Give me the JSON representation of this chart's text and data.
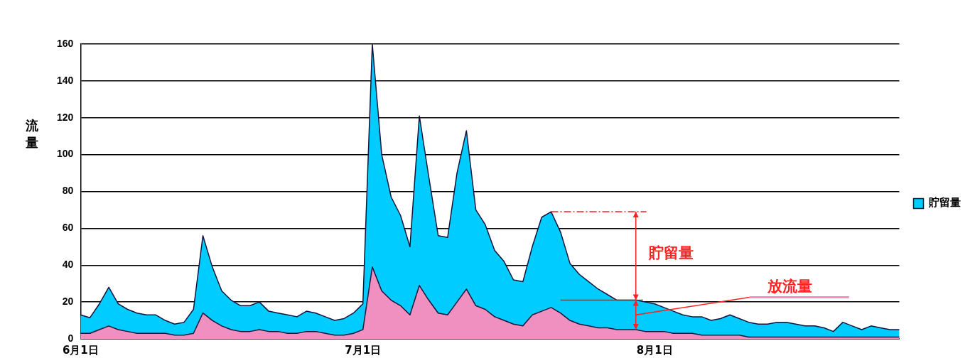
{
  "chart_data": {
    "type": "area",
    "ylabel": "流量",
    "categories": [
      "6月1日",
      null,
      null,
      null,
      null,
      null,
      null,
      null,
      null,
      null,
      null,
      null,
      null,
      null,
      null,
      null,
      null,
      null,
      null,
      null,
      null,
      null,
      null,
      null,
      null,
      null,
      null,
      null,
      null,
      null,
      "7月1日",
      null,
      null,
      null,
      null,
      null,
      null,
      null,
      null,
      null,
      null,
      null,
      null,
      null,
      null,
      null,
      null,
      null,
      null,
      null,
      null,
      null,
      null,
      null,
      null,
      null,
      null,
      null,
      null,
      null,
      null,
      "8月1日",
      null,
      null,
      null,
      null,
      null,
      null,
      null,
      null,
      null,
      null,
      null,
      null,
      null,
      null,
      null,
      null,
      null,
      null,
      null,
      null,
      null,
      null,
      null,
      null,
      null,
      null
    ],
    "series": [
      {
        "name": "貯留量",
        "color": "#00ccff",
        "values": [
          13,
          11.5,
          19,
          28,
          19,
          16,
          14,
          13,
          13,
          10,
          8,
          9,
          16,
          56,
          39,
          26,
          21,
          18,
          18,
          20,
          15,
          14,
          13,
          12,
          15,
          14,
          12,
          10,
          11,
          14,
          19,
          160,
          100,
          77,
          67,
          50,
          121,
          88,
          56,
          55,
          90,
          113,
          70,
          62,
          48,
          42,
          32,
          31,
          50,
          66,
          69,
          58,
          41,
          35,
          31,
          27,
          24,
          21,
          21,
          21,
          20,
          19,
          17,
          15,
          13,
          12,
          12,
          10,
          11,
          13,
          11,
          9,
          8,
          8,
          9,
          9,
          8,
          7,
          7,
          6,
          4,
          9,
          7,
          5,
          7,
          6,
          5,
          5
        ]
      },
      {
        "color": "#f090c0",
        "values": [
          3,
          3,
          5,
          7,
          5,
          4,
          3,
          3,
          3,
          3,
          2,
          2,
          3,
          14,
          10,
          7,
          5,
          4,
          4,
          5,
          4,
          4,
          3,
          3,
          4,
          4,
          3,
          2,
          2,
          3,
          5,
          39,
          26,
          21,
          18,
          13,
          29,
          21,
          14,
          13,
          20,
          27,
          18,
          16,
          12,
          10,
          8,
          7,
          13,
          15,
          17,
          14,
          10,
          8,
          7,
          6,
          6,
          5,
          5,
          5,
          4,
          4,
          4,
          3,
          3,
          3,
          2,
          2,
          2,
          2,
          2,
          1,
          1,
          1,
          1,
          1,
          1,
          1,
          1,
          1,
          1,
          1,
          1,
          1,
          1,
          1,
          1,
          1
        ]
      }
    ],
    "ylim": [
      0,
      160
    ],
    "yticks": [
      0,
      20,
      40,
      60,
      80,
      100,
      120,
      140,
      160
    ],
    "grid": "y",
    "legend": "right",
    "marker": "none",
    "ref_lines": [
      {
        "axis": "y",
        "value": 69,
        "color": "#ff2020",
        "line_style": "dashed"
      },
      {
        "axis": "y",
        "value": 21,
        "color": "#555555",
        "line_style": "solid"
      }
    ],
    "annotations": [
      "貯留量",
      "放流量"
    ]
  }
}
